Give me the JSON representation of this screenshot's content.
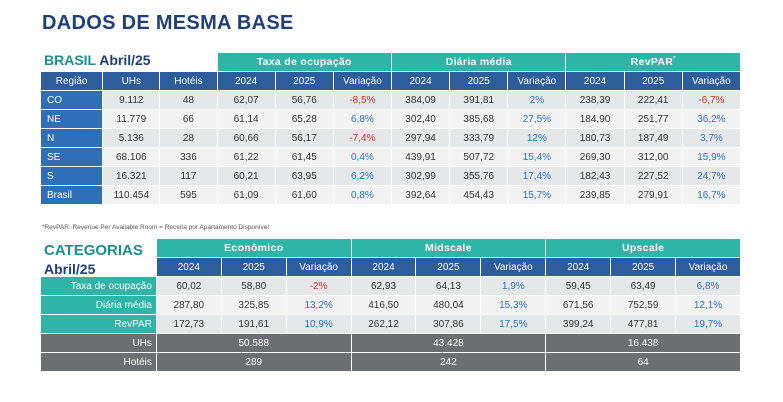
{
  "title": "DADOS DE MESMA BASE",
  "brasil": {
    "label": "BRASIL",
    "date": "Abril/25",
    "groups": [
      "Taxa de ocupação",
      "Diária média",
      "RevPAR"
    ],
    "revpar_mark": "*",
    "headers": [
      "Região",
      "UHs",
      "Hotéis",
      "2024",
      "2025",
      "Variação",
      "2024",
      "2025",
      "Variação",
      "2024",
      "2025",
      "Variação"
    ],
    "rows": [
      [
        "CO",
        "9.112",
        "48",
        "62,07",
        "56,76",
        "-8,5%",
        "384,09",
        "391,81",
        "2%",
        "238,39",
        "222,41",
        "-6,7%"
      ],
      [
        "NE",
        "11.779",
        "66",
        "61,14",
        "65,28",
        "6,8%",
        "302,40",
        "385,68",
        "27,5%",
        "184,90",
        "251,77",
        "36,2%"
      ],
      [
        "N",
        "5.136",
        "28",
        "60,66",
        "56,17",
        "-7,4%",
        "297,94",
        "333,79",
        "12%",
        "180,73",
        "187,49",
        "3,7%"
      ],
      [
        "SE",
        "68.106",
        "336",
        "61,22",
        "61,45",
        "0,4%",
        "439,91",
        "507,72",
        "15,4%",
        "269,30",
        "312,00",
        "15,9%"
      ],
      [
        "S",
        "16.321",
        "117",
        "60,21",
        "63,95",
        "6,2%",
        "302,99",
        "355,76",
        "17,4%",
        "182,43",
        "227,52",
        "24,7%"
      ],
      [
        "Brasil",
        "110.454",
        "595",
        "61,09",
        "61,60",
        "0,8%",
        "392,64",
        "454,43",
        "15,7%",
        "239,85",
        "279,91",
        "16,7%"
      ]
    ]
  },
  "footnote": "*RevPAR: Revenue Per Available Room = Receita por Apartamento Disponível",
  "categorias": {
    "label": "CATEGORIAS",
    "date": "Abril/25",
    "groups": [
      "Econômico",
      "Midscale",
      "Upscale"
    ],
    "headers": [
      "2024",
      "2025",
      "Variação",
      "2024",
      "2025",
      "Variação",
      "2024",
      "2025",
      "Variação"
    ],
    "rows": [
      [
        "Taxa de ocupação",
        "60,02",
        "58,80",
        "-2%",
        "62,93",
        "64,13",
        "1,9%",
        "59,45",
        "63,49",
        "6,8%"
      ],
      [
        "Diária média",
        "287,80",
        "325,85",
        "13,2%",
        "416,50",
        "480,04",
        "15,3%",
        "671,56",
        "752,59",
        "12,1%"
      ],
      [
        "RevPAR",
        "172,73",
        "191,61",
        "10,9%",
        "262,12",
        "307,86",
        "17,5%",
        "399,24",
        "477,81",
        "19,7%"
      ]
    ],
    "summary": [
      [
        "UHs",
        "50.588",
        "43.428",
        "16.438"
      ],
      [
        "Hotéis",
        "289",
        "242",
        "64"
      ]
    ]
  },
  "colors": {
    "teal": "#2eb5a8",
    "navy": "#1f3f78",
    "blue": "#2e6fb8",
    "negative": "#d42d2d",
    "positive": "#2d6fc4",
    "gray": "#6d6e71"
  }
}
